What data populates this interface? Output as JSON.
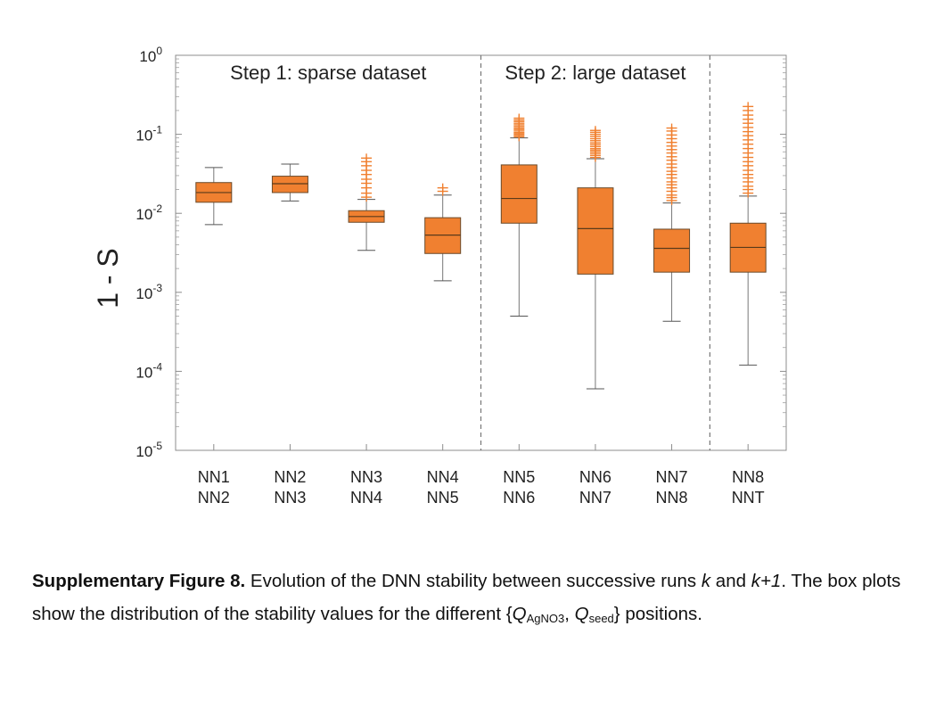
{
  "chart_data": {
    "type": "box",
    "ylabel": "1 - S",
    "yscale": "log",
    "ylim": [
      1e-05,
      1
    ],
    "ytick_labels": [
      {
        "base": "10",
        "exp": "0"
      },
      {
        "base": "10",
        "exp": "-1"
      },
      {
        "base": "10",
        "exp": "-2"
      },
      {
        "base": "10",
        "exp": "-3"
      },
      {
        "base": "10",
        "exp": "-4"
      },
      {
        "base": "10",
        "exp": "-5"
      }
    ],
    "sections": [
      {
        "label": "Step 1: sparse dataset"
      },
      {
        "label": "Step 2: large dataset"
      }
    ],
    "box_color": "#f08030",
    "median_color": "#5a3a1a",
    "categories": [
      {
        "line1": "NN1",
        "line2": "NN2",
        "whisker_low": 0.0072,
        "q1": 0.0138,
        "median": 0.0183,
        "q3": 0.0245,
        "whisker_high": 0.038,
        "outliers": []
      },
      {
        "line1": "NN2",
        "line2": "NN3",
        "whisker_low": 0.0143,
        "q1": 0.0183,
        "median": 0.0237,
        "q3": 0.0295,
        "whisker_high": 0.042,
        "outliers": []
      },
      {
        "line1": "NN3",
        "line2": "NN4",
        "whisker_low": 0.0034,
        "q1": 0.0077,
        "median": 0.0091,
        "q3": 0.0108,
        "whisker_high": 0.015,
        "outliers": [
          0.016,
          0.018,
          0.021,
          0.024,
          0.027,
          0.031,
          0.035,
          0.04,
          0.045,
          0.05
        ]
      },
      {
        "line1": "NN4",
        "line2": "NN5",
        "whisker_low": 0.0014,
        "q1": 0.0031,
        "median": 0.0053,
        "q3": 0.0088,
        "whisker_high": 0.017,
        "outliers": [
          0.019,
          0.021
        ]
      },
      {
        "line1": "NN5",
        "line2": "NN6",
        "whisker_low": 0.0005,
        "q1": 0.0075,
        "median": 0.0154,
        "q3": 0.041,
        "whisker_high": 0.09,
        "outliers": [
          0.093,
          0.097,
          0.101,
          0.105,
          0.11,
          0.115,
          0.12,
          0.126,
          0.132,
          0.138,
          0.145,
          0.152,
          0.16
        ]
      },
      {
        "line1": "NN6",
        "line2": "NN7",
        "whisker_low": 6e-05,
        "q1": 0.0017,
        "median": 0.0064,
        "q3": 0.021,
        "whisker_high": 0.049,
        "outliers": [
          0.051,
          0.054,
          0.057,
          0.06,
          0.063,
          0.066,
          0.07,
          0.074,
          0.078,
          0.083,
          0.088,
          0.094,
          0.1,
          0.106,
          0.112
        ]
      },
      {
        "line1": "NN7",
        "line2": "NN8",
        "whisker_low": 0.00043,
        "q1": 0.0018,
        "median": 0.0036,
        "q3": 0.0063,
        "whisker_high": 0.0135,
        "outliers": [
          0.0145,
          0.0158,
          0.017,
          0.019,
          0.021,
          0.023,
          0.025,
          0.028,
          0.031,
          0.034,
          0.038,
          0.042,
          0.047,
          0.052,
          0.058,
          0.064,
          0.071,
          0.079,
          0.088,
          0.098,
          0.11,
          0.12
        ]
      },
      {
        "line1": "NN8",
        "line2": "NNT",
        "whisker_low": 0.00012,
        "q1": 0.0018,
        "median": 0.0037,
        "q3": 0.0075,
        "whisker_high": 0.0165,
        "outliers": [
          0.018,
          0.02,
          0.022,
          0.025,
          0.028,
          0.031,
          0.035,
          0.04,
          0.045,
          0.051,
          0.058,
          0.066,
          0.075,
          0.085,
          0.096,
          0.108,
          0.122,
          0.138,
          0.155,
          0.175,
          0.2,
          0.225
        ]
      }
    ]
  },
  "caption": {
    "figure_label": "Supplementary Figure 8.",
    "text_1": " Evolution of the DNN stability between successive runs ",
    "var_k": "k",
    "text_2": " and ",
    "var_k1": "k+1",
    "text_3": ". The box plots show the distribution of the stability values for the different {",
    "q1_sym": "Q",
    "q1_sub": "AgNO3",
    "sep": ", ",
    "q2_sym": "Q",
    "q2_sub": "seed",
    "text_4": "} positions."
  }
}
